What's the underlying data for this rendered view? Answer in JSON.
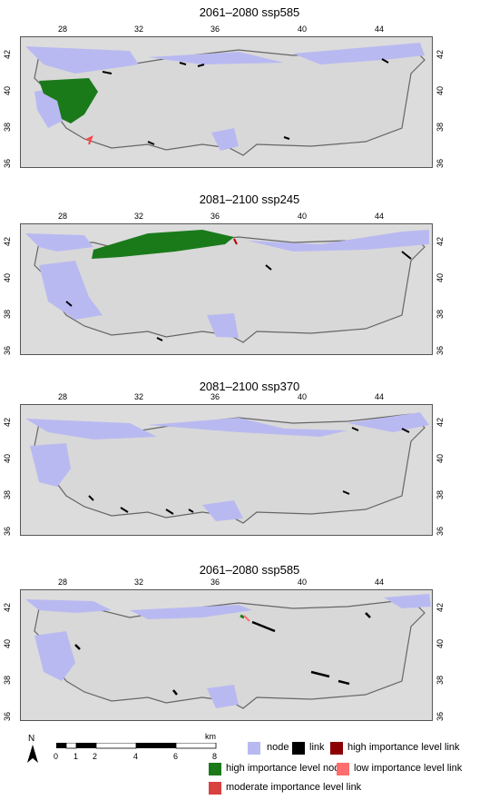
{
  "panels": [
    {
      "title": "2061–2080 ssp585"
    },
    {
      "title": "2081–2100 ssp245"
    },
    {
      "title": "2081–2100 ssp370"
    },
    {
      "title": "2061–2080 ssp585"
    }
  ],
  "axes": {
    "lon_ticks": [
      "28",
      "32",
      "36",
      "40",
      "44"
    ],
    "lat_ticks": [
      "42",
      "40",
      "38",
      "36"
    ]
  },
  "north_arrow": {
    "label": "N"
  },
  "scale_bar": {
    "labels": [
      "0",
      "1",
      "2",
      "4",
      "6",
      "8"
    ],
    "unit": "km"
  },
  "legend": {
    "items": [
      {
        "label": "node",
        "color": "#b9b9f2"
      },
      {
        "label": "link",
        "color": "#000000"
      },
      {
        "label": "high importance level link",
        "color": "#8b0000"
      },
      {
        "label": "high importance level node",
        "color": "#1a7a1a"
      },
      {
        "label": "low importance level link",
        "color": "#ff6e6e"
      },
      {
        "label": "moderate importance level link",
        "color": "#d94040"
      }
    ]
  },
  "colors": {
    "background": "#dcdcdc",
    "node": "#b9b9f2",
    "outline": "#666666",
    "high_node": "#1a7a1a"
  }
}
